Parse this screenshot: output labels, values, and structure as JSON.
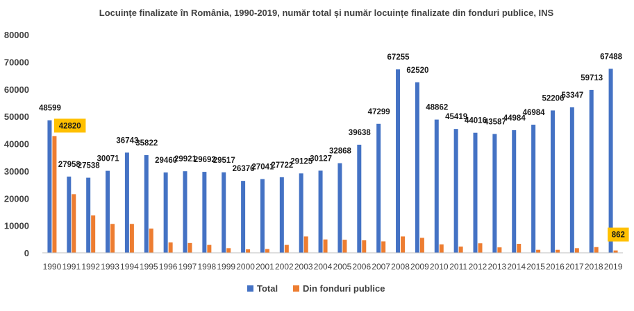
{
  "chart_data": {
    "type": "bar",
    "title": "Locuințe finalizate în România, 1990-2019, număr total și număr locuințe finalizate din fonduri publice, INS",
    "categories": [
      "1990",
      "1991",
      "1992",
      "1993",
      "1994",
      "1995",
      "1996",
      "1997",
      "1998",
      "1999",
      "2000",
      "2001",
      "2002",
      "2003",
      "2004",
      "2005",
      "2006",
      "2007",
      "2008",
      "2009",
      "2010",
      "2011",
      "2012",
      "2013",
      "2014",
      "2015",
      "2016",
      "2017",
      "2018",
      "2019"
    ],
    "series": [
      {
        "name": "Total",
        "color": "#4472C4",
        "values": [
          48599,
          27958,
          27538,
          30071,
          36743,
          35822,
          29460,
          29921,
          29692,
          29517,
          26376,
          27041,
          27722,
          29125,
          30127,
          32868,
          39638,
          47299,
          67255,
          62520,
          48862,
          45419,
          44016,
          43587,
          44984,
          46984,
          52206,
          53347,
          59713,
          67488
        ],
        "labels": [
          "48599",
          "27958",
          "27538",
          "30071",
          "36743",
          "35822",
          "29460",
          "29921",
          "29692",
          "29517",
          "26376",
          "27041",
          "27722",
          "29125",
          "30127",
          "32868",
          "39638",
          "47299",
          "67255",
          "62520",
          "48862",
          "45419",
          "44016",
          "43587",
          "44984",
          "46984",
          "52206",
          "53347",
          "59713",
          "67488"
        ]
      },
      {
        "name": "Din fonduri publice",
        "color": "#ED7D31",
        "values": [
          42820,
          21500,
          13700,
          10600,
          10600,
          8900,
          3800,
          3600,
          2900,
          1700,
          1300,
          1400,
          2900,
          6000,
          4900,
          4800,
          4600,
          4200,
          6000,
          5500,
          3100,
          2300,
          3500,
          2000,
          3300,
          1100,
          1100,
          1700,
          2100,
          862
        ],
        "labels": [
          "42820",
          "",
          "",
          "",
          "",
          "",
          "",
          "",
          "",
          "",
          "",
          "",
          "",
          "",
          "",
          "",
          "",
          "",
          "",
          "",
          "",
          "",
          "",
          "",
          "",
          "",
          "",
          "",
          "",
          "862"
        ]
      }
    ],
    "ylim": [
      0,
      80000
    ],
    "yticks": [
      "0",
      "10000",
      "20000",
      "30000",
      "40000",
      "50000",
      "60000",
      "70000",
      "80000"
    ],
    "grid": false,
    "legend_position": "bottom",
    "highlight_color": "#FFC000"
  }
}
